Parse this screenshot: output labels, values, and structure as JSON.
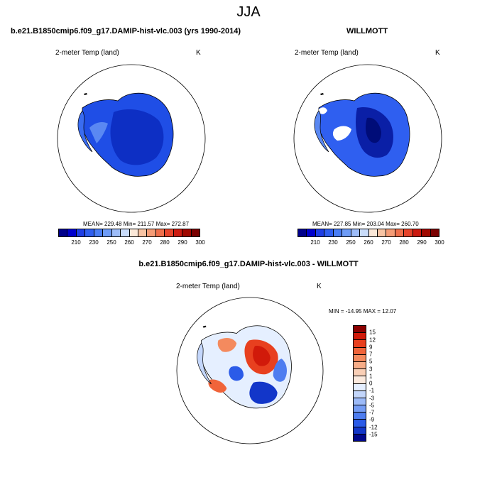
{
  "title": "JJA",
  "panels": [
    {
      "title": "b.e21.B1850cmip6.f09_g17.DAMIP-hist-vlc.003 (yrs 1990-2014)",
      "variable": "2-meter Temp (land)",
      "unit": "K",
      "stats": "MEAN= 229.48  Min= 211.57  Max= 272.87"
    },
    {
      "title": "WILLMOTT",
      "variable": "2-meter Temp (land)",
      "unit": "K",
      "stats": "MEAN= 227.85  Min= 203.04  Max= 260.70"
    },
    {
      "title": "b.e21.B1850cmip6.f09_g17.DAMIP-hist-vlc.003 - WILLMOTT",
      "variable": "2-meter Temp (land)",
      "unit": "K",
      "stats": "MIN = -14.95 MAX =  12.07"
    }
  ],
  "abs_colorbar": {
    "colors": [
      "#00008b",
      "#0000cd",
      "#1e3ee6",
      "#2f5ff0",
      "#4a7ef5",
      "#6e9cf7",
      "#9dbcf8",
      "#c9dcfa",
      "#fbe8d8",
      "#f8c4a4",
      "#f59c76",
      "#ef6f4b",
      "#e6432a",
      "#cc1a10",
      "#a00800",
      "#7a0000"
    ],
    "ticks": [
      "210",
      "230",
      "250",
      "260",
      "270",
      "280",
      "290",
      "300"
    ]
  },
  "diff_colorbar": {
    "colors": [
      "#8b0000",
      "#d11a0a",
      "#e8401f",
      "#f0643a",
      "#f48a5e",
      "#f7ad88",
      "#f9cfb6",
      "#fbeade",
      "#e5efff",
      "#c3d6fb",
      "#9cbaf8",
      "#749cf4",
      "#4e7df0",
      "#2b5be8",
      "#1236c9",
      "#00078c"
    ],
    "ticks": [
      "15",
      "12",
      "9",
      "7",
      "5",
      "3",
      "1",
      "0",
      "-1",
      "-3",
      "-5",
      "-7",
      "-9",
      "-12",
      "-15"
    ]
  }
}
